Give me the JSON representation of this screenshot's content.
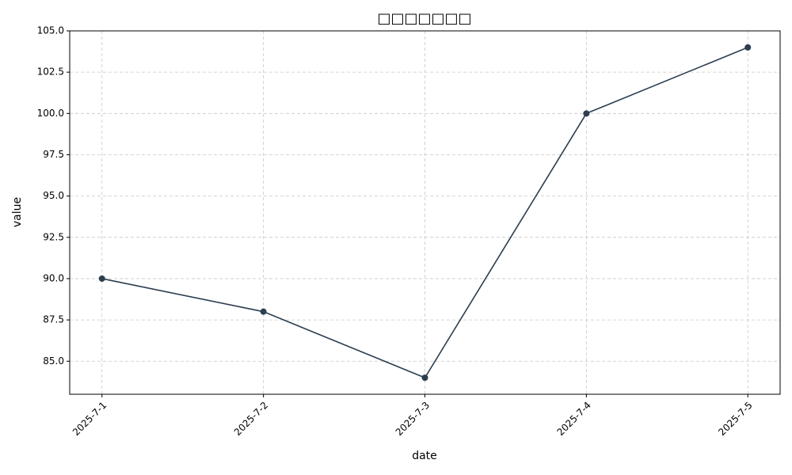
{
  "chart_data": {
    "type": "line",
    "title": "□□□□□□□",
    "x_label": "date",
    "y_label": "value",
    "categories": [
      "2025-7-1",
      "2025-7-2",
      "2025-7-3",
      "2025-7-4",
      "2025-7-5"
    ],
    "series": [
      {
        "name": "value",
        "color": "#2c3e50",
        "values": [
          90,
          88,
          84,
          100,
          104
        ]
      }
    ],
    "ylim": [
      83,
      105
    ],
    "yticks": [
      {
        "value": 85,
        "label": "85.0"
      },
      {
        "value": 87.5,
        "label": "87.5"
      },
      {
        "value": 90,
        "label": "90.0"
      },
      {
        "value": 92.5,
        "label": "92.5"
      },
      {
        "value": 95,
        "label": "95.0"
      },
      {
        "value": 97.5,
        "label": "97.5"
      },
      {
        "value": 100,
        "label": "100.0"
      },
      {
        "value": 102.5,
        "label": "102.5"
      },
      {
        "value": 105,
        "label": "105.0"
      }
    ],
    "grid": true
  }
}
